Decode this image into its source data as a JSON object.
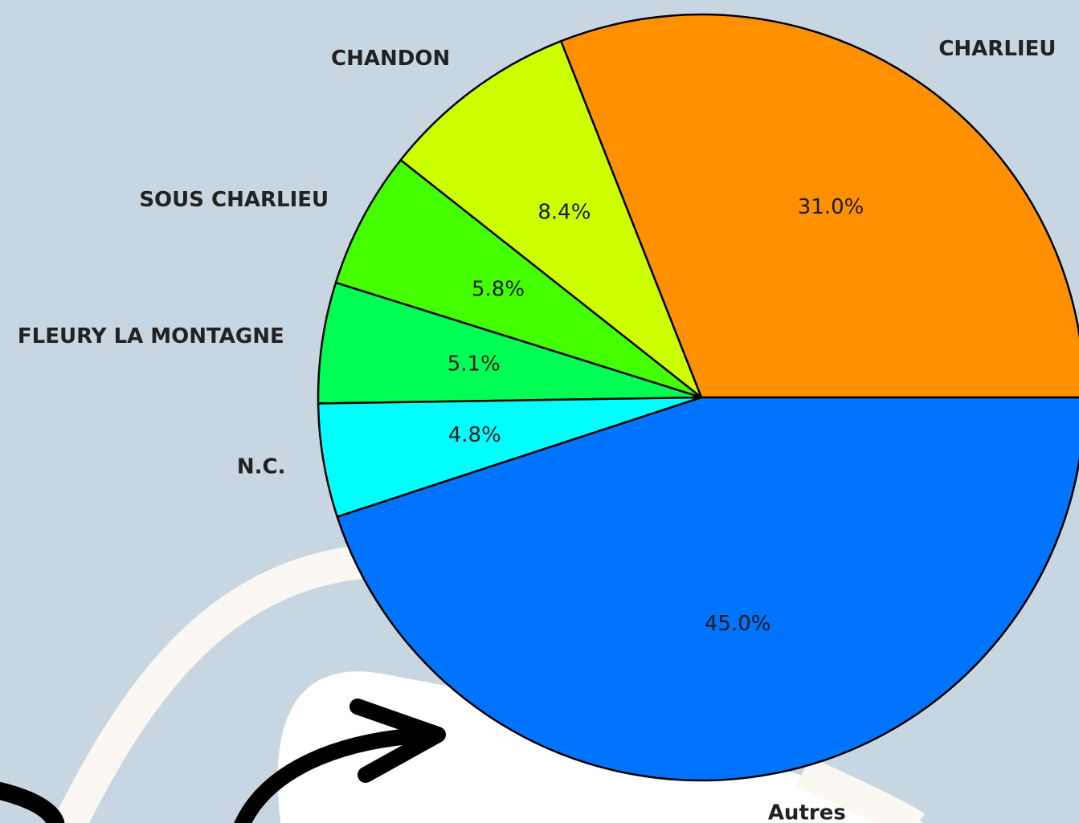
{
  "chart_data": {
    "type": "pie",
    "categories": [
      "CHARLIEU",
      "CHANDON",
      "SOUS CHARLIEU",
      "FLEURY LA MONTAGNE",
      "N.C.",
      "Autres"
    ],
    "values": [
      31.0,
      8.4,
      5.8,
      5.1,
      4.8,
      45.0
    ],
    "value_labels": [
      "31.0%",
      "8.4%",
      "5.8%",
      "5.1%",
      "4.8%",
      "45.0%"
    ],
    "colors": [
      "#ff9100",
      "#ccff00",
      "#44ff00",
      "#00ff55",
      "#00ffff",
      "#0073ff"
    ]
  }
}
